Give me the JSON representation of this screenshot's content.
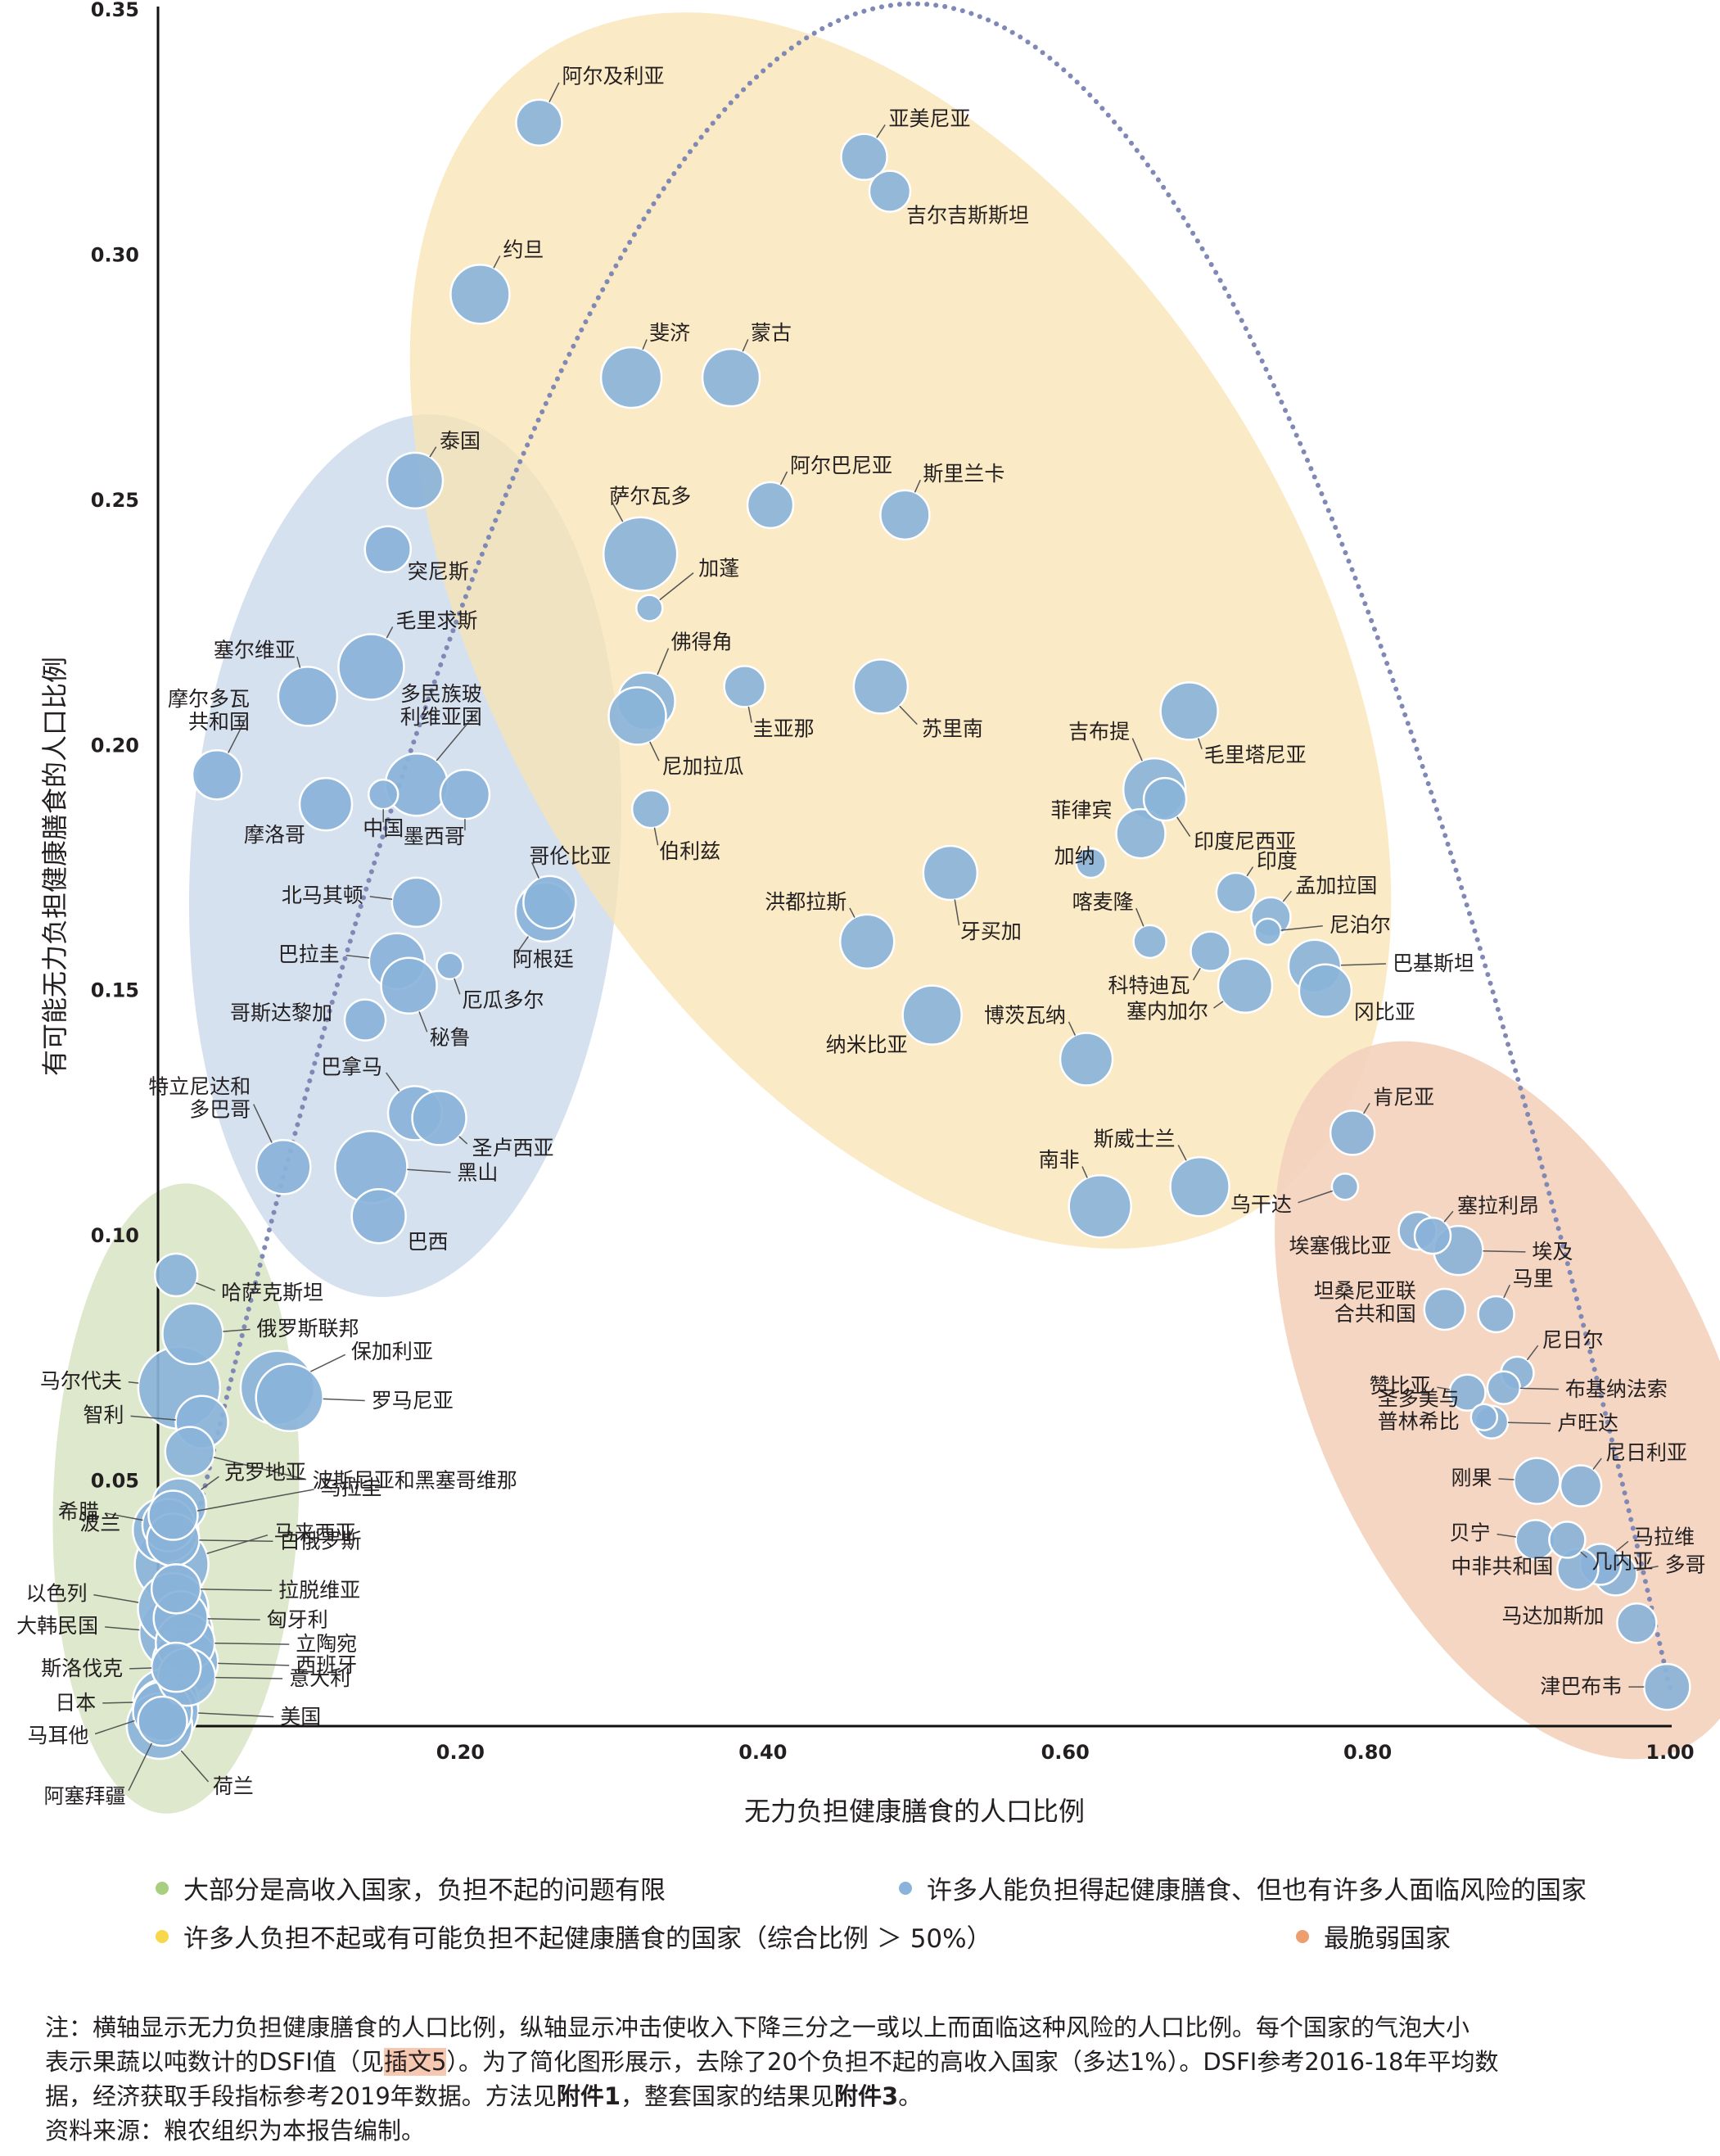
{
  "chart_data": {
    "type": "scatter",
    "xlabel": "无力负担健康膳食的人口比例",
    "ylabel": "有可能无力负担健康膳食的人口比例",
    "xlim": [
      0,
      1.0
    ],
    "ylim": [
      0,
      0.35
    ],
    "xticks": [
      "0.20",
      "0.40",
      "0.60",
      "0.80",
      "1.00"
    ],
    "yticks": [
      "0.05",
      "0.10",
      "0.15",
      "0.20",
      "0.25",
      "0.30",
      "0.35"
    ],
    "colors": {
      "bubble": "#8ab3d9",
      "bubble_stroke": "#ffffff",
      "trend": "#8089b6",
      "green": "#d9e6c6",
      "blue": "#d3deec",
      "yellow": "#f8e7c0",
      "orange": "#f3d4c0"
    },
    "groups": [
      {
        "name": "大部分是高收入国家，负担不起的问题有限",
        "color": "#a8cf80"
      },
      {
        "name": "许多人能负担得起健康膳食、但也有许多人面临风险的国家",
        "color": "#8ab3d9"
      },
      {
        "name": "许多人负担不起或有可能负担不起健康膳食的国家（综合比例 ＞ 50%）",
        "color": "#f7d84a"
      },
      {
        "name": "最脆弱国家",
        "color": "#ec9e6e"
      }
    ],
    "points": [
      {
        "label": "阿尔及利亚",
        "x": 0.252,
        "y": 0.327,
        "r": 28
      },
      {
        "label": "亚美尼亚",
        "x": 0.467,
        "y": 0.32,
        "r": 28
      },
      {
        "label": "吉尔吉斯斯坦",
        "x": 0.484,
        "y": 0.313,
        "r": 25
      },
      {
        "label": "约旦",
        "x": 0.213,
        "y": 0.292,
        "r": 36
      },
      {
        "label": "斐济",
        "x": 0.313,
        "y": 0.275,
        "r": 37
      },
      {
        "label": "蒙古",
        "x": 0.379,
        "y": 0.275,
        "r": 35
      },
      {
        "label": "泰国",
        "x": 0.17,
        "y": 0.254,
        "r": 34
      },
      {
        "label": "阿尔巴尼亚",
        "x": 0.405,
        "y": 0.249,
        "r": 28
      },
      {
        "label": "斯里兰卡",
        "x": 0.494,
        "y": 0.247,
        "r": 30
      },
      {
        "label": "萨尔瓦多",
        "x": 0.319,
        "y": 0.239,
        "r": 45
      },
      {
        "label": "突尼斯",
        "x": 0.152,
        "y": 0.24,
        "r": 28
      },
      {
        "label": "加蓬",
        "x": 0.325,
        "y": 0.228,
        "r": 16
      },
      {
        "label": "毛里求斯",
        "x": 0.141,
        "y": 0.216,
        "r": 40
      },
      {
        "label": "塞尔维亚",
        "x": 0.099,
        "y": 0.21,
        "r": 36
      },
      {
        "label": "佛得角",
        "x": 0.323,
        "y": 0.209,
        "r": 35
      },
      {
        "label": "圭亚那",
        "x": 0.388,
        "y": 0.212,
        "r": 25
      },
      {
        "label": "苏里南",
        "x": 0.478,
        "y": 0.212,
        "r": 33
      },
      {
        "label": "毛里塔尼亚",
        "x": 0.682,
        "y": 0.207,
        "r": 35
      },
      {
        "label": "尼加拉瓜",
        "x": 0.317,
        "y": 0.206,
        "r": 35
      },
      {
        "label": "摩尔多瓦共和国",
        "x": 0.039,
        "y": 0.194,
        "r": 30
      },
      {
        "label": "吉布提",
        "x": 0.659,
        "y": 0.191,
        "r": 38
      },
      {
        "label": "多民族玻利维亚国",
        "x": 0.171,
        "y": 0.192,
        "r": 38
      },
      {
        "label": "墨西哥",
        "x": 0.203,
        "y": 0.19,
        "r": 30
      },
      {
        "label": "中国",
        "x": 0.149,
        "y": 0.19,
        "r": 18
      },
      {
        "label": "摩洛哥",
        "x": 0.111,
        "y": 0.188,
        "r": 32
      },
      {
        "label": "印度尼西亚",
        "x": 0.666,
        "y": 0.189,
        "r": 26
      },
      {
        "label": "伯利兹",
        "x": 0.326,
        "y": 0.187,
        "r": 23
      },
      {
        "label": "菲律宾",
        "x": 0.65,
        "y": 0.182,
        "r": 30
      },
      {
        "label": "加纳",
        "x": 0.617,
        "y": 0.176,
        "r": 18
      },
      {
        "label": "哥伦比亚",
        "x": 0.259,
        "y": 0.168,
        "r": 32
      },
      {
        "label": "阿根廷",
        "x": 0.256,
        "y": 0.166,
        "r": 36
      },
      {
        "label": "牙买加",
        "x": 0.524,
        "y": 0.174,
        "r": 33
      },
      {
        "label": "印度",
        "x": 0.713,
        "y": 0.17,
        "r": 24
      },
      {
        "label": "北马其顿",
        "x": 0.171,
        "y": 0.168,
        "r": 30
      },
      {
        "label": "孟加拉国",
        "x": 0.736,
        "y": 0.165,
        "r": 24
      },
      {
        "label": "尼泊尔",
        "x": 0.734,
        "y": 0.162,
        "r": 16
      },
      {
        "label": "喀麦隆",
        "x": 0.656,
        "y": 0.16,
        "r": 20
      },
      {
        "label": "洪都拉斯",
        "x": 0.469,
        "y": 0.16,
        "r": 33
      },
      {
        "label": "科特迪瓦",
        "x": 0.696,
        "y": 0.158,
        "r": 24
      },
      {
        "label": "巴拉圭",
        "x": 0.158,
        "y": 0.156,
        "r": 34
      },
      {
        "label": "巴基斯坦",
        "x": 0.765,
        "y": 0.155,
        "r": 32
      },
      {
        "label": "厄瓜多尔",
        "x": 0.193,
        "y": 0.155,
        "r": 16
      },
      {
        "label": "秘鲁",
        "x": 0.166,
        "y": 0.151,
        "r": 34
      },
      {
        "label": "塞内加尔",
        "x": 0.719,
        "y": 0.151,
        "r": 33
      },
      {
        "label": "冈比亚",
        "x": 0.772,
        "y": 0.15,
        "r": 32
      },
      {
        "label": "纳米比亚",
        "x": 0.512,
        "y": 0.145,
        "r": 36
      },
      {
        "label": "哥斯达黎加",
        "x": 0.137,
        "y": 0.144,
        "r": 25
      },
      {
        "label": "博茨瓦纳",
        "x": 0.614,
        "y": 0.136,
        "r": 32
      },
      {
        "label": "巴拿马",
        "x": 0.17,
        "y": 0.125,
        "r": 33
      },
      {
        "label": "圣卢西亚",
        "x": 0.186,
        "y": 0.124,
        "r": 33
      },
      {
        "label": "肯尼亚",
        "x": 0.79,
        "y": 0.121,
        "r": 27
      },
      {
        "label": "特立尼达和多巴哥",
        "x": 0.083,
        "y": 0.114,
        "r": 33
      },
      {
        "label": "黑山",
        "x": 0.141,
        "y": 0.114,
        "r": 44
      },
      {
        "label": "斯威士兰",
        "x": 0.689,
        "y": 0.11,
        "r": 36
      },
      {
        "label": "乌干达",
        "x": 0.785,
        "y": 0.11,
        "r": 16
      },
      {
        "label": "南非",
        "x": 0.623,
        "y": 0.106,
        "r": 38
      },
      {
        "label": "巴西",
        "x": 0.146,
        "y": 0.104,
        "r": 33
      },
      {
        "label": "塞拉利昂",
        "x": 0.843,
        "y": 0.1,
        "r": 22
      },
      {
        "label": "埃塞俄比亚",
        "x": 0.833,
        "y": 0.101,
        "r": 23
      },
      {
        "label": "埃及",
        "x": 0.86,
        "y": 0.097,
        "r": 30
      },
      {
        "label": "哈萨克斯坦",
        "x": 0.012,
        "y": 0.092,
        "r": 26
      },
      {
        "label": "马里",
        "x": 0.885,
        "y": 0.084,
        "r": 22
      },
      {
        "label": "坦桑尼亚联合共和国",
        "x": 0.851,
        "y": 0.085,
        "r": 25
      },
      {
        "label": "俄罗斯联邦",
        "x": 0.023,
        "y": 0.08,
        "r": 37
      },
      {
        "label": "尼日尔",
        "x": 0.899,
        "y": 0.072,
        "r": 20
      },
      {
        "label": "保加利亚",
        "x": 0.079,
        "y": 0.069,
        "r": 45
      },
      {
        "label": "罗马尼亚",
        "x": 0.087,
        "y": 0.067,
        "r": 41
      },
      {
        "label": "布基纳法索",
        "x": 0.89,
        "y": 0.069,
        "r": 20
      },
      {
        "label": "赞比亚",
        "x": 0.866,
        "y": 0.068,
        "r": 22
      },
      {
        "label": "马尔代夫",
        "x": 0.014,
        "y": 0.069,
        "r": 50
      },
      {
        "label": "卢旺达",
        "x": 0.882,
        "y": 0.062,
        "r": 20
      },
      {
        "label": "圣多美与普林希比",
        "x": 0.877,
        "y": 0.063,
        "r": 16
      },
      {
        "label": "智利",
        "x": 0.029,
        "y": 0.062,
        "r": 32
      },
      {
        "label": "波斯尼亚和黑塞哥维那",
        "x": 0.021,
        "y": 0.056,
        "r": 30
      },
      {
        "label": "尼日利亚",
        "x": 0.941,
        "y": 0.049,
        "r": 25
      },
      {
        "label": "刚果",
        "x": 0.912,
        "y": 0.05,
        "r": 28
      },
      {
        "label": "克罗地亚",
        "x": 0.014,
        "y": 0.045,
        "r": 33
      },
      {
        "label": "乌拉圭",
        "x": 0.01,
        "y": 0.043,
        "r": 30
      },
      {
        "label": "希腊",
        "x": 0.007,
        "y": 0.041,
        "r": 32
      },
      {
        "label": "波兰",
        "x": 0.005,
        "y": 0.04,
        "r": 40
      },
      {
        "label": "白俄罗斯",
        "x": 0.01,
        "y": 0.038,
        "r": 32
      },
      {
        "label": "马来西亚",
        "x": 0.009,
        "y": 0.033,
        "r": 45
      },
      {
        "label": "几内亚",
        "x": 0.932,
        "y": 0.038,
        "r": 22
      },
      {
        "label": "贝宁",
        "x": 0.911,
        "y": 0.038,
        "r": 24
      },
      {
        "label": "马拉维",
        "x": 0.954,
        "y": 0.033,
        "r": 25
      },
      {
        "label": "中非共和国",
        "x": 0.939,
        "y": 0.032,
        "r": 25
      },
      {
        "label": "多哥",
        "x": 0.964,
        "y": 0.031,
        "r": 26
      },
      {
        "label": "拉脱维亚",
        "x": 0.012,
        "y": 0.028,
        "r": 30
      },
      {
        "label": "以色列",
        "x": 0.01,
        "y": 0.024,
        "r": 43
      },
      {
        "label": "匈牙利",
        "x": 0.015,
        "y": 0.022,
        "r": 33
      },
      {
        "label": "大韩民国",
        "x": 0.012,
        "y": 0.019,
        "r": 45
      },
      {
        "label": "马达加斯加",
        "x": 0.978,
        "y": 0.021,
        "r": 24
      },
      {
        "label": "立陶宛",
        "x": 0.018,
        "y": 0.017,
        "r": 36
      },
      {
        "label": "西班牙",
        "x": 0.018,
        "y": 0.013,
        "r": 40
      },
      {
        "label": "斯洛伐克",
        "x": 0.012,
        "y": 0.012,
        "r": 30
      },
      {
        "label": "意大利",
        "x": 0.019,
        "y": 0.01,
        "r": 35
      },
      {
        "label": "日本",
        "x": 0.005,
        "y": 0.005,
        "r": 40
      },
      {
        "label": "美国",
        "x": 0.005,
        "y": 0.003,
        "r": 40
      },
      {
        "label": "马耳他",
        "x": 0.003,
        "y": 0.003,
        "r": 36
      },
      {
        "label": "荷兰",
        "x": 0.001,
        "y": 0.0,
        "r": 40
      },
      {
        "label": "阿塞拜疆",
        "x": 0.003,
        "y": 0.001,
        "r": 30
      },
      {
        "label": "津巴布韦",
        "x": 0.998,
        "y": 0.008,
        "r": 28
      }
    ]
  },
  "notes": {
    "line1_a": "注：横轴显示无力负担健康膳食的人口比例，纵轴显示冲击使收入下降三分之一或以上而面临这种风险的人口比例。每个国家的气泡大小",
    "line2_a": "表示果蔬以吨数计的DSFI值（见",
    "line2_ref": "插文5",
    "line2_b": "）。为了简化图形展示，去除了20个负担不起的高收入国家（多达1%）。DSFI参考2016-18年平均数",
    "line3_a": "据，经济获取手段指标参考2019年数据。方法见",
    "line3_ref1": "附件1",
    "line3_b": "，整套国家的结果见",
    "line3_ref2": "附件3",
    "line3_c": "。",
    "source": "资料来源：粮农组织为本报告编制。"
  }
}
